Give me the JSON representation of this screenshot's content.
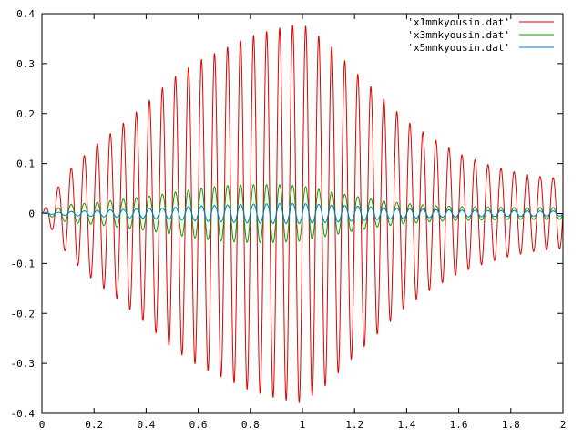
{
  "chart_data": {
    "type": "line",
    "title": "",
    "xlabel": "",
    "ylabel": "",
    "xlim": [
      0,
      2
    ],
    "ylim": [
      -0.4,
      0.4
    ],
    "xticks": [
      "0",
      "0.2",
      "0.4",
      "0.6",
      "0.8",
      "1",
      "1.2",
      "1.4",
      "1.6",
      "1.8",
      "2"
    ],
    "xtick_values": [
      0,
      0.2,
      0.4,
      0.6,
      0.8,
      1.0,
      1.2,
      1.4,
      1.6,
      1.8,
      2.0
    ],
    "yticks": [
      "0.4",
      "0.3",
      "0.2",
      "0.1",
      "0",
      "-0.1",
      "-0.2",
      "-0.3",
      "-0.4"
    ],
    "ytick_values": [
      0.4,
      0.3,
      0.2,
      0.1,
      0,
      -0.1,
      -0.2,
      -0.3,
      -0.4
    ],
    "grid": false,
    "legend_position": "top-right",
    "signal_model": {
      "oscillation_frequency": 20,
      "envelope_peak_x": 1.0
    },
    "series": [
      {
        "name": "'x1mmkyousin.dat'",
        "color": "#e00000",
        "envelope": {
          "x": [
            0,
            0.1,
            0.2,
            0.3,
            0.4,
            0.5,
            0.6,
            0.7,
            0.8,
            0.9,
            1.0,
            1.1,
            1.2,
            1.3,
            1.4,
            1.5,
            1.6,
            1.7,
            1.8,
            1.9,
            2.0
          ],
          "y": [
            0,
            0.085,
            0.135,
            0.175,
            0.22,
            0.27,
            0.305,
            0.33,
            0.355,
            0.37,
            0.38,
            0.34,
            0.285,
            0.235,
            0.185,
            0.15,
            0.12,
            0.1,
            0.085,
            0.075,
            0.07
          ]
        }
      },
      {
        "name": "'x3mmkyousin.dat'",
        "color": "#00a000",
        "envelope": {
          "x": [
            0,
            0.1,
            0.2,
            0.3,
            0.4,
            0.5,
            0.6,
            0.7,
            0.8,
            0.9,
            1.0,
            1.1,
            1.2,
            1.3,
            1.4,
            1.5,
            1.6,
            1.7,
            1.8,
            1.9,
            2.0
          ],
          "y": [
            0,
            0.018,
            0.022,
            0.028,
            0.034,
            0.042,
            0.05,
            0.056,
            0.058,
            0.058,
            0.055,
            0.045,
            0.035,
            0.026,
            0.02,
            0.016,
            0.014,
            0.013,
            0.012,
            0.012,
            0.012
          ]
        }
      },
      {
        "name": "'x5mmkyousin.dat'",
        "color": "#0070e0",
        "envelope": {
          "x": [
            0,
            0.1,
            0.2,
            0.3,
            0.4,
            0.5,
            0.6,
            0.7,
            0.8,
            0.9,
            1.0,
            1.1,
            1.2,
            1.3,
            1.4,
            1.5,
            1.6,
            1.7,
            1.8,
            1.9,
            2.0
          ],
          "y": [
            0,
            0.004,
            0.006,
            0.008,
            0.01,
            0.012,
            0.015,
            0.017,
            0.019,
            0.02,
            0.02,
            0.018,
            0.015,
            0.012,
            0.01,
            0.008,
            0.007,
            0.006,
            0.006,
            0.005,
            0.005
          ]
        }
      }
    ]
  }
}
